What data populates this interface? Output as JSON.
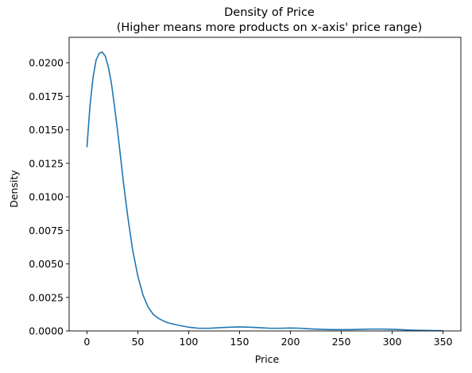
{
  "chart_data": {
    "type": "line",
    "title_line1": "Density of Price",
    "title_line2": "(Higher means more products on x-axis' price range)",
    "xlabel": "Price",
    "ylabel": "Density",
    "xlim": [
      -17.5,
      367.5
    ],
    "ylim": [
      0,
      0.0219
    ],
    "xticks": [
      0,
      50,
      100,
      150,
      200,
      250,
      300,
      350
    ],
    "xtick_labels": [
      "0",
      "50",
      "100",
      "150",
      "200",
      "250",
      "300",
      "350"
    ],
    "yticks": [
      0,
      0.0025,
      0.005,
      0.0075,
      0.01,
      0.0125,
      0.015,
      0.0175,
      0.02
    ],
    "ytick_labels": [
      "0.0000",
      "0.0025",
      "0.0050",
      "0.0075",
      "0.0100",
      "0.0125",
      "0.0150",
      "0.0175",
      "0.0200"
    ],
    "grid": false,
    "line_color": "#1f77b4",
    "series": [
      {
        "x": [
          0,
          3,
          6,
          9,
          12,
          15,
          18,
          21,
          24,
          27,
          30,
          33,
          36,
          40,
          45,
          50,
          55,
          60,
          65,
          70,
          75,
          80,
          90,
          100,
          110,
          120,
          130,
          140,
          150,
          160,
          170,
          180,
          190,
          200,
          210,
          220,
          230,
          240,
          250,
          260,
          270,
          280,
          290,
          300,
          310,
          320,
          330,
          340,
          350
        ],
        "y": [
          0.0137,
          0.0168,
          0.0189,
          0.0202,
          0.0207,
          0.0208,
          0.0205,
          0.0197,
          0.0185,
          0.0168,
          0.015,
          0.013,
          0.011,
          0.0086,
          0.006,
          0.0041,
          0.0027,
          0.0018,
          0.00125,
          0.00095,
          0.00075,
          0.0006,
          0.00042,
          0.00028,
          0.0002,
          0.0002,
          0.00024,
          0.00028,
          0.0003,
          0.00028,
          0.00024,
          0.0002,
          0.0002,
          0.00022,
          0.0002,
          0.00015,
          0.00012,
          0.0001,
          0.0001,
          0.0001,
          0.00012,
          0.00014,
          0.00014,
          0.00012,
          9e-05,
          6e-05,
          4e-05,
          3e-05,
          2e-05
        ]
      }
    ]
  }
}
